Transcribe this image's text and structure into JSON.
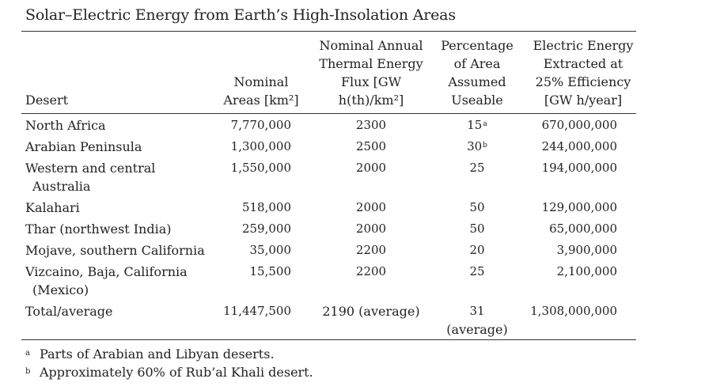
{
  "title": "Solar–Electric Energy from Earth’s High-Insolation Areas",
  "columns": {
    "desert": "Desert",
    "area": [
      "Nominal",
      "Areas [km²]"
    ],
    "flux": [
      "Nominal Annual",
      "Thermal Energy",
      "Flux [GW",
      "h(th)/km²]"
    ],
    "pct": [
      "Percentage",
      "of Area",
      "Assumed",
      "Useable"
    ],
    "energy": [
      "Electric Energy",
      "Extracted at",
      "25% Efficiency",
      "[GW h/year]"
    ]
  },
  "rows": [
    {
      "name": [
        "North Africa"
      ],
      "area": "7,770,000",
      "flux": "2300",
      "pct": [
        "15"
      ],
      "pct_note": "a",
      "energy": "670,000,000"
    },
    {
      "name": [
        "Arabian Peninsula"
      ],
      "area": "1,300,000",
      "flux": "2500",
      "pct": [
        "30"
      ],
      "pct_note": "b",
      "energy": "244,000,000"
    },
    {
      "name": [
        "Western and central",
        "Australia"
      ],
      "area": "1,550,000",
      "flux": "2000",
      "pct": [
        "25"
      ],
      "pct_note": "",
      "energy": "194,000,000"
    },
    {
      "name": [
        "Kalahari"
      ],
      "area": "518,000",
      "flux": "2000",
      "pct": [
        "50"
      ],
      "pct_note": "",
      "energy": "129,000,000"
    },
    {
      "name": [
        "Thar (northwest India)"
      ],
      "area": "259,000",
      "flux": "2000",
      "pct": [
        "50"
      ],
      "pct_note": "",
      "energy": "65,000,000"
    },
    {
      "name": [
        "Mojave, southern California"
      ],
      "area": "35,000",
      "flux": "2200",
      "pct": [
        "20"
      ],
      "pct_note": "",
      "energy": "3,900,000"
    },
    {
      "name": [
        "Vizcaino, Baja, California",
        "(Mexico)"
      ],
      "area": "15,500",
      "flux": "2200",
      "pct": [
        "25"
      ],
      "pct_note": "",
      "energy": "2,100,000"
    },
    {
      "name": [
        "Total/average"
      ],
      "area": "11,447,500",
      "flux": "2190 (average)",
      "pct": [
        "31",
        "(average)"
      ],
      "pct_note": "",
      "energy": "1,308,000,000"
    }
  ],
  "footnotes": [
    {
      "mark": "a",
      "text": "Parts of Arabian and Libyan deserts."
    },
    {
      "mark": "b",
      "text": "Approximately 60% of Rub’al Khali desert."
    }
  ]
}
